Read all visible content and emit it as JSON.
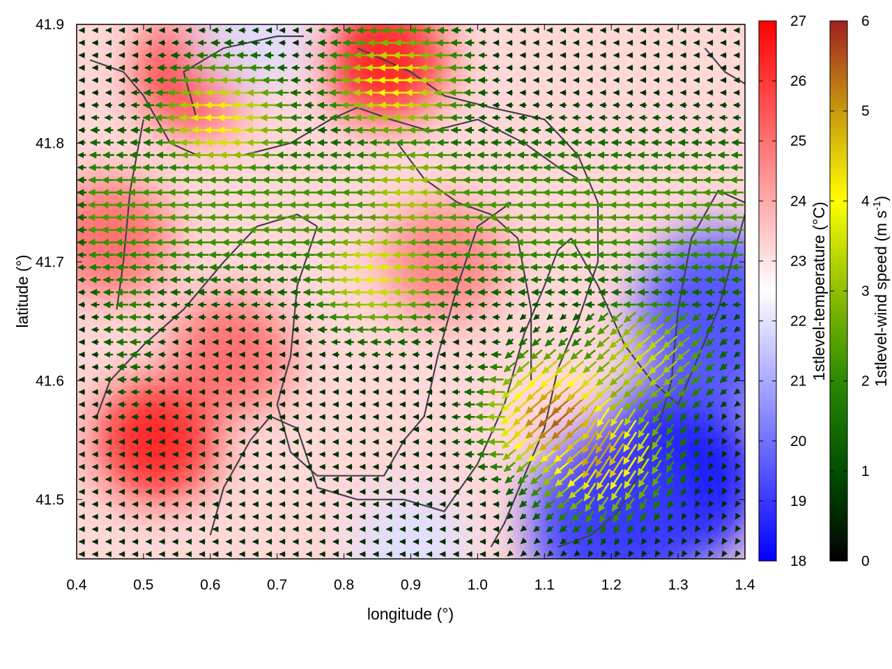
{
  "chart_data": {
    "type": "heatmap",
    "subtype": "temperature field with wind vector overlay",
    "xlabel": "longitude (°)",
    "ylabel": "latitude (°)",
    "xlim": [
      0.4,
      1.4
    ],
    "ylim": [
      41.45,
      41.9
    ],
    "x_ticks": [
      "0.4",
      "0.5",
      "0.6",
      "0.7",
      "0.8",
      "0.9",
      "1.0",
      "1.1",
      "1.2",
      "1.3",
      "1.4"
    ],
    "y_ticks": [
      "41.5",
      "41.6",
      "41.7",
      "41.8",
      "41.9"
    ],
    "grid": false,
    "temperature": {
      "label": "1stlevel-temperature (°C)",
      "range": [
        18,
        27
      ],
      "ticks": [
        "18",
        "19",
        "20",
        "21",
        "22",
        "23",
        "24",
        "25",
        "26",
        "27"
      ],
      "colors": {
        "low": "#0000ff",
        "mid": "#ffffff",
        "high": "#ff0000"
      },
      "hot_spots": [
        {
          "lon": 0.52,
          "lat": 41.55,
          "value": 26.5
        },
        {
          "lon": 0.58,
          "lat": 41.86,
          "value": 26.0
        },
        {
          "lon": 0.86,
          "lat": 41.87,
          "value": 26.5
        },
        {
          "lon": 0.63,
          "lat": 41.62,
          "value": 25.0
        },
        {
          "lon": 0.45,
          "lat": 41.72,
          "value": 25.0
        },
        {
          "lon": 0.95,
          "lat": 41.7,
          "value": 24.5
        }
      ],
      "cold_spots": [
        {
          "lon": 1.3,
          "lat": 41.52,
          "value": 18.3
        },
        {
          "lon": 1.36,
          "lat": 41.65,
          "value": 19.3
        },
        {
          "lon": 1.2,
          "lat": 41.48,
          "value": 19.0
        },
        {
          "lon": 0.66,
          "lat": 41.89,
          "value": 21.5
        },
        {
          "lon": 0.9,
          "lat": 41.46,
          "value": 21.5
        }
      ]
    },
    "wind_speed": {
      "label": "1stlevel-wind speed (m s-1)",
      "label_parts": {
        "main": "1stlevel-wind speed (m s",
        "sup": "-1",
        "end": ")"
      },
      "range": [
        0,
        6
      ],
      "ticks": [
        "0",
        "1",
        "2",
        "3",
        "4",
        "5",
        "6"
      ],
      "colors": [
        "#000000",
        "#004f00",
        "#2a8a00",
        "#8fbf00",
        "#ffff00",
        "#c89a10",
        "#a02020"
      ],
      "prevailing_direction": "westward / south-westward",
      "jets": [
        {
          "lon": 0.62,
          "lat": 41.82,
          "value": 4.0
        },
        {
          "lon": 0.88,
          "lat": 41.85,
          "value": 4.0
        },
        {
          "lon": 0.85,
          "lat": 41.69,
          "value": 3.8
        },
        {
          "lon": 0.9,
          "lat": 41.76,
          "value": 3.3
        },
        {
          "lon": 1.18,
          "lat": 41.54,
          "value": 5.0
        },
        {
          "lon": 1.12,
          "lat": 41.57,
          "value": 5.5
        },
        {
          "lon": 1.25,
          "lat": 41.62,
          "value": 3.6
        }
      ]
    },
    "overlay": "administrative boundary lines (dark grey)"
  }
}
